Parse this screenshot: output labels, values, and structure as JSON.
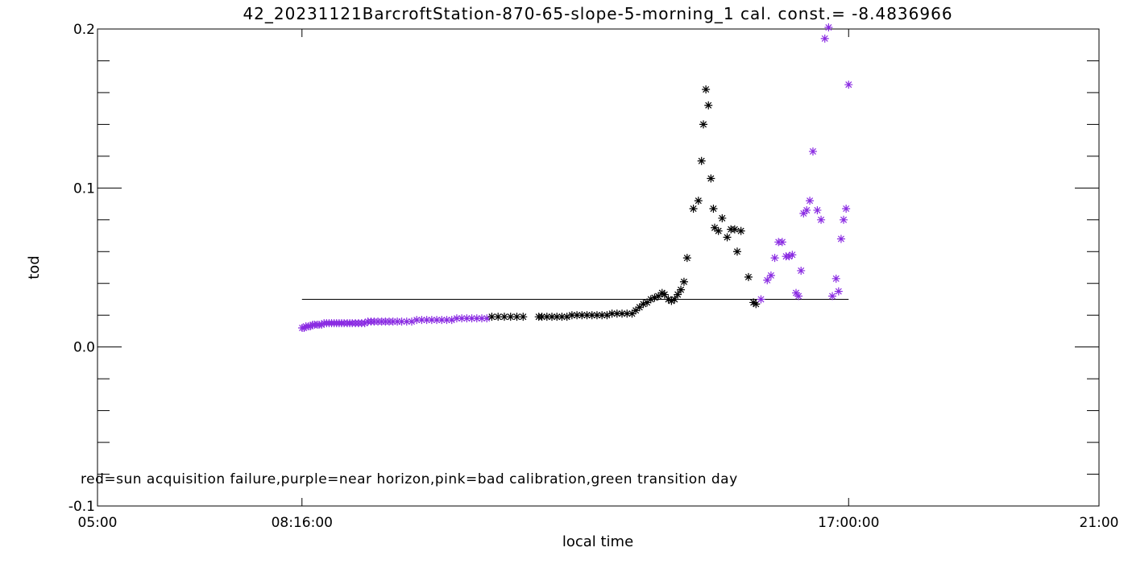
{
  "chart_data": {
    "type": "scatter",
    "title": "42_20231121BarcroftStation-870-65-slope-5-morning_1 cal. const.= -8.4836966",
    "xlabel": "local time",
    "ylabel": "tod",
    "x_unit": "hours",
    "xlim": [
      5,
      21
    ],
    "ylim": [
      -0.1,
      0.2
    ],
    "x_major_ticks": [
      5,
      8.2667,
      17,
      21
    ],
    "x_tick_labels": [
      "05:00",
      "08:16:00",
      "17:00:00",
      "21:00"
    ],
    "y_major_ticks": [
      -0.1,
      0.0,
      0.1,
      0.2
    ],
    "y_tick_labels": [
      "-0.1",
      "0.0",
      "0.1",
      "0.2"
    ],
    "y_minor_step": 0.02,
    "grid": false,
    "note": "red=sun acquisition failure,purple=near horizon,pink=bad calibration,green transition day",
    "reference_line": {
      "y": 0.03,
      "x_start": 8.2667,
      "x_end": 17.0
    },
    "colors": {
      "normal": "#000000",
      "near_horizon": "#8a2be2"
    },
    "series": [
      {
        "flag": "near horizon",
        "color": "#8a2be2",
        "x": [
          8.27,
          8.3,
          8.33,
          8.37,
          8.4,
          8.44,
          8.47,
          8.51,
          8.54,
          8.58,
          8.62,
          8.66,
          8.7,
          8.74,
          8.78,
          8.82,
          8.86,
          8.9,
          8.94,
          8.99,
          9.03,
          9.07,
          9.12,
          9.17,
          9.22,
          9.27,
          9.32,
          9.37,
          9.42,
          9.48,
          9.54,
          9.6,
          9.66,
          9.72,
          9.79,
          9.86,
          9.94,
          10.02,
          10.1,
          10.18,
          10.26,
          10.34,
          10.42,
          10.5,
          10.58,
          10.66,
          10.74,
          10.82,
          10.9,
          10.98,
          11.06,
          11.14,
          11.22
        ],
        "y": [
          0.012,
          0.012,
          0.013,
          0.013,
          0.013,
          0.014,
          0.014,
          0.014,
          0.014,
          0.014,
          0.015,
          0.015,
          0.015,
          0.015,
          0.015,
          0.015,
          0.015,
          0.015,
          0.015,
          0.015,
          0.015,
          0.015,
          0.015,
          0.015,
          0.015,
          0.015,
          0.016,
          0.016,
          0.016,
          0.016,
          0.016,
          0.016,
          0.016,
          0.016,
          0.016,
          0.016,
          0.016,
          0.016,
          0.017,
          0.017,
          0.017,
          0.017,
          0.017,
          0.017,
          0.017,
          0.017,
          0.018,
          0.018,
          0.018,
          0.018,
          0.018,
          0.018,
          0.018
        ]
      },
      {
        "flag": "normal",
        "color": "#000000",
        "x": [
          11.3,
          11.4,
          11.5,
          11.6,
          11.7,
          11.8,
          12.05,
          12.1,
          12.18,
          12.26,
          12.34,
          12.42,
          12.5,
          12.58,
          12.66,
          12.74,
          12.82,
          12.9,
          12.98,
          13.06,
          13.14,
          13.22,
          13.3,
          13.38,
          13.46,
          13.54,
          13.6,
          13.66,
          13.72,
          13.78,
          13.84,
          13.9,
          13.96,
          14.02,
          14.06,
          14.12,
          14.17,
          14.22,
          14.27,
          14.32,
          14.37,
          14.42,
          14.52,
          14.6,
          14.65,
          14.68,
          14.72,
          14.76,
          14.8,
          14.84,
          14.86,
          14.92,
          14.98,
          15.06,
          15.12,
          15.18,
          15.22,
          15.28,
          15.4,
          15.48,
          15.52
        ],
        "y": [
          0.019,
          0.019,
          0.019,
          0.019,
          0.019,
          0.019,
          0.019,
          0.019,
          0.019,
          0.019,
          0.019,
          0.019,
          0.019,
          0.02,
          0.02,
          0.02,
          0.02,
          0.02,
          0.02,
          0.02,
          0.02,
          0.021,
          0.021,
          0.021,
          0.021,
          0.021,
          0.023,
          0.025,
          0.027,
          0.028,
          0.03,
          0.031,
          0.032,
          0.034,
          0.033,
          0.03,
          0.029,
          0.03,
          0.033,
          0.036,
          0.041,
          0.056,
          0.087,
          0.092,
          0.117,
          0.14,
          0.162,
          0.152,
          0.106,
          0.087,
          0.075,
          0.073,
          0.081,
          0.069,
          0.074,
          0.074,
          0.06,
          0.073,
          0.044,
          0.028,
          0.027
        ]
      },
      {
        "flag": "near horizon",
        "color": "#8a2be2",
        "x": [
          15.6,
          15.7,
          15.76,
          15.82,
          15.88,
          15.94,
          16.0,
          16.05,
          16.1,
          16.16,
          16.2,
          16.24,
          16.28,
          16.33,
          16.38,
          16.43,
          16.5,
          16.56,
          16.62,
          16.68,
          16.74,
          16.8,
          16.84,
          16.88,
          16.92,
          16.96,
          17.0
        ],
        "y": [
          0.03,
          0.042,
          0.045,
          0.056,
          0.066,
          0.066,
          0.057,
          0.057,
          0.058,
          0.034,
          0.032,
          0.048,
          0.084,
          0.086,
          0.092,
          0.123,
          0.086,
          0.08,
          0.194,
          0.201,
          0.032,
          0.043,
          0.035,
          0.068,
          0.08,
          0.087,
          0.165
        ]
      }
    ]
  }
}
